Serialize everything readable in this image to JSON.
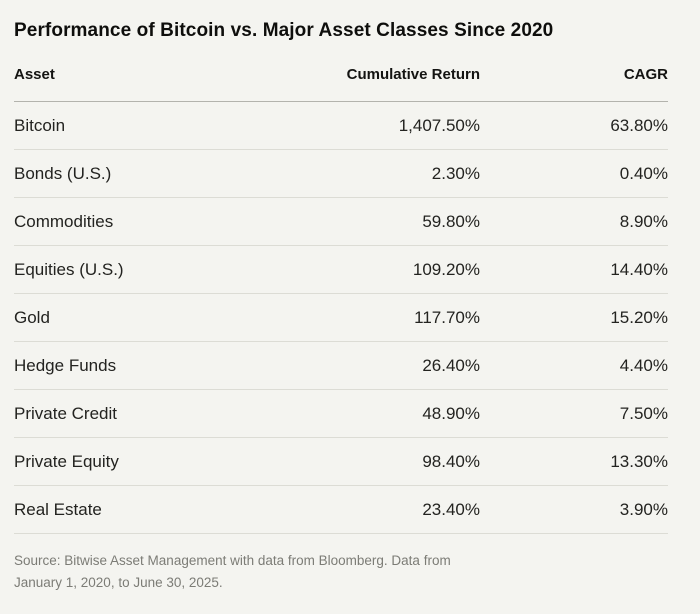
{
  "chart_data": {
    "type": "table",
    "title": "Performance of Bitcoin vs. Major Asset Classes Since 2020",
    "columns": [
      "Asset",
      "Cumulative Return",
      "CAGR"
    ],
    "rows": [
      [
        "Bitcoin",
        "1,407.50%",
        "63.80%"
      ],
      [
        "Bonds (U.S.)",
        "2.30%",
        "0.40%"
      ],
      [
        "Commodities",
        "59.80%",
        "8.90%"
      ],
      [
        "Equities (U.S.)",
        "109.20%",
        "14.40%"
      ],
      [
        "Gold",
        "117.70%",
        "15.20%"
      ],
      [
        "Hedge Funds",
        "26.40%",
        "4.40%"
      ],
      [
        "Private Credit",
        "48.90%",
        "7.50%"
      ],
      [
        "Private Equity",
        "98.40%",
        "13.30%"
      ],
      [
        "Real Estate",
        "23.40%",
        "3.90%"
      ]
    ],
    "layout": {
      "grid": "horizontal-row-separators",
      "value_alignment": "right"
    }
  },
  "source": {
    "line1": "Source: Bitwise Asset Management with data from Bloomberg. Data from",
    "line2": "January 1, 2020, to June 30, 2025."
  }
}
